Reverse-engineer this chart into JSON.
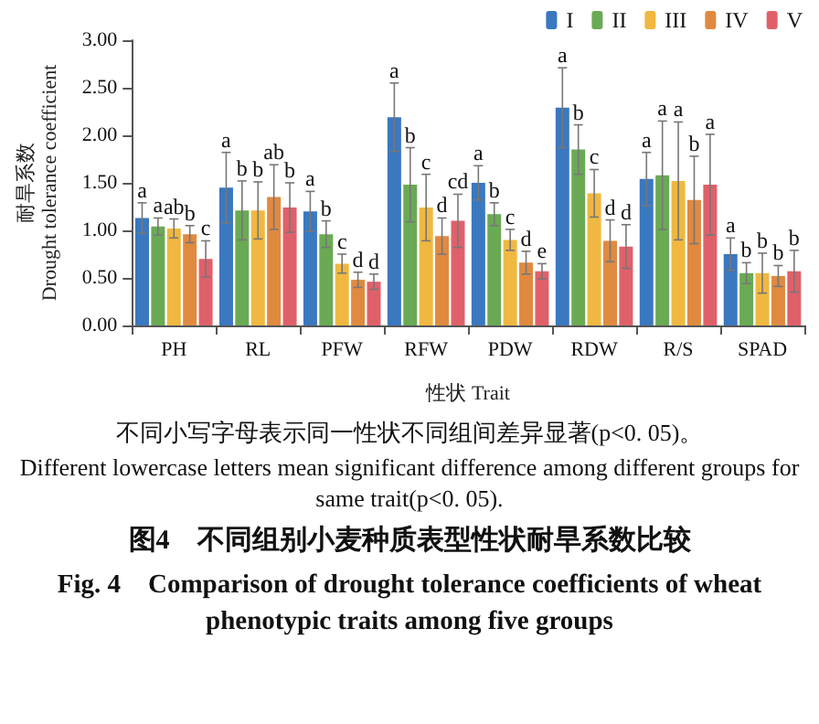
{
  "chart_data": {
    "type": "bar",
    "title": "图4　不同组别小麦种质表型性状耐旱系数比较",
    "subtitle": "Fig. 4　Comparison of drought tolerance coefficients of wheat phenotypic traits among five groups",
    "xlabel": "性状 Trait",
    "ylabel": "耐旱系数\nDrought tolerance coefficient",
    "annotations": [
      "不同小写字母表示同一性状不同组间差异显著(p<0. 05)。",
      "Different lowercase letters mean significant difference among different groups for same trait(p<0. 05)."
    ],
    "categories": [
      "PH",
      "RL",
      "PFW",
      "RFW",
      "PDW",
      "RDW",
      "R/S",
      "SPAD"
    ],
    "series": [
      {
        "name": "I",
        "color": "#3a78c0",
        "values": [
          1.13,
          1.45,
          1.2,
          2.19,
          1.5,
          2.29,
          1.54,
          0.75
        ],
        "errors": [
          0.16,
          0.37,
          0.21,
          0.36,
          0.18,
          0.42,
          0.28,
          0.17
        ],
        "value_labels": [
          "a",
          "a",
          "a",
          "a",
          "a",
          "a",
          "a",
          "a"
        ]
      },
      {
        "name": "II",
        "color": "#6aaa54",
        "values": [
          1.04,
          1.21,
          0.96,
          1.48,
          1.17,
          1.85,
          1.58,
          0.55
        ],
        "errors": [
          0.09,
          0.31,
          0.14,
          0.39,
          0.12,
          0.26,
          0.57,
          0.11
        ],
        "value_labels": [
          "a",
          "b",
          "b",
          "b",
          "b",
          "b",
          "a",
          "b"
        ]
      },
      {
        "name": "III",
        "color": "#f0b840",
        "values": [
          1.02,
          1.21,
          0.65,
          1.24,
          0.9,
          1.39,
          1.52,
          0.55
        ],
        "errors": [
          0.1,
          0.3,
          0.1,
          0.35,
          0.11,
          0.25,
          0.62,
          0.21
        ],
        "value_labels": [
          "ab",
          "b",
          "c",
          "c",
          "c",
          "c",
          "a",
          "b"
        ]
      },
      {
        "name": "IV",
        "color": "#e08a40",
        "values": [
          0.96,
          1.35,
          0.48,
          0.94,
          0.66,
          0.89,
          1.32,
          0.52
        ],
        "errors": [
          0.09,
          0.34,
          0.08,
          0.19,
          0.12,
          0.22,
          0.46,
          0.11
        ],
        "value_labels": [
          "b",
          "ab",
          "d",
          "d",
          "d",
          "d",
          "b",
          "b"
        ]
      },
      {
        "name": "V",
        "color": "#e0606a",
        "values": [
          0.7,
          1.24,
          0.46,
          1.1,
          0.57,
          0.83,
          1.48,
          0.57
        ],
        "errors": [
          0.19,
          0.26,
          0.08,
          0.28,
          0.08,
          0.23,
          0.53,
          0.22
        ],
        "value_labels": [
          "c",
          "b",
          "d",
          "cd",
          "e",
          "d",
          "a",
          "b"
        ]
      }
    ],
    "ylim": [
      0,
      3
    ],
    "yticks": [
      {
        "value": 0,
        "label": "0.00"
      },
      {
        "value": 0.5,
        "label": "0.50"
      },
      {
        "value": 1,
        "label": "1.00"
      },
      {
        "value": 1.5,
        "label": "1.50"
      },
      {
        "value": 2,
        "label": "2.00"
      },
      {
        "value": 2.5,
        "label": "2.50"
      },
      {
        "value": 3,
        "label": "3.00"
      }
    ],
    "legend": "top right",
    "grid": false
  }
}
